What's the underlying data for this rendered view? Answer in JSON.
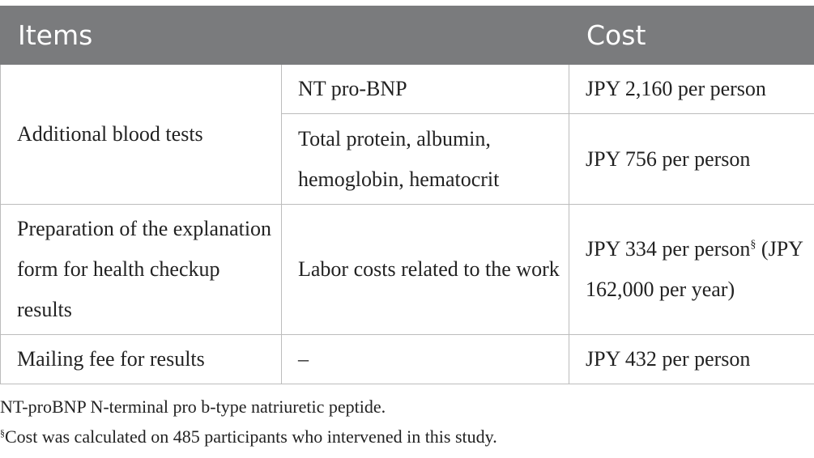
{
  "table": {
    "headers": {
      "items": "Items",
      "cost": "Cost"
    },
    "rows": [
      {
        "item": "Additional blood tests",
        "detail": "NT pro-BNP",
        "cost": "JPY 2,160 per person"
      },
      {
        "detail": "Total protein, albumin, hemoglobin, hematocrit",
        "cost": "JPY 756 per person"
      },
      {
        "item": "Preparation of the explanation form for health checkup results",
        "detail": "Labor costs related to the work",
        "cost": "JPY 334 per person",
        "cost_mark": "§",
        "cost_extra": "(JPY 162,000 per year)"
      },
      {
        "item": "Mailing fee for results",
        "detail": "–",
        "cost": "JPY 432 per person"
      }
    ]
  },
  "footnotes": {
    "abbrev": "NT-proBNP N-terminal pro b-type natriuretic peptide.",
    "mark": "§",
    "cost_note": "Cost was calculated on 485 participants who intervened in this study."
  }
}
